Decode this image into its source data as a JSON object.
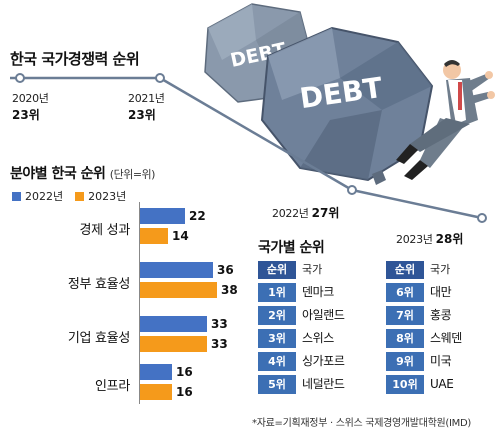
{
  "header": {
    "title": "한국 국가경쟁력 순위",
    "points": [
      {
        "year": "2020년",
        "rank": "23위"
      },
      {
        "year": "2021년",
        "rank": "23위"
      },
      {
        "year": "2022년",
        "rank": "27위"
      },
      {
        "year": "2023년",
        "rank": "28위"
      }
    ]
  },
  "illustration": {
    "rock_large_text": "DEBT",
    "rock_small_text": "DEBT"
  },
  "sector": {
    "title": "분야별 한국 순위",
    "unit": "(단위=위)",
    "legend": [
      "2022년",
      "2023년"
    ]
  },
  "countries": {
    "title": "국가별 순위",
    "col_rank": "순위",
    "col_country": "국가",
    "left": [
      {
        "rank": "1위",
        "country": "덴마크"
      },
      {
        "rank": "2위",
        "country": "아일랜드"
      },
      {
        "rank": "3위",
        "country": "스위스"
      },
      {
        "rank": "4위",
        "country": "싱가포르"
      },
      {
        "rank": "5위",
        "country": "네덜란드"
      }
    ],
    "right": [
      {
        "rank": "6위",
        "country": "대만"
      },
      {
        "rank": "7위",
        "country": "홍콩"
      },
      {
        "rank": "8위",
        "country": "스웨덴"
      },
      {
        "rank": "9위",
        "country": "미국"
      },
      {
        "rank": "10위",
        "country": "UAE"
      }
    ]
  },
  "source": "*자료=기획재정부 · 스위스 국제경영개발대학원(IMD)",
  "colors": {
    "y2022": "#4472c4",
    "y2023": "#f59a1b",
    "line": "#6b7d95",
    "header_blue": "#2f5597"
  },
  "chart_data": [
    {
      "type": "line",
      "title": "한국 국가경쟁력 순위",
      "x": [
        "2020년",
        "2021년",
        "2022년",
        "2023년"
      ],
      "series": [
        {
          "values": [
            23,
            23,
            27,
            28
          ]
        }
      ]
    },
    {
      "type": "bar",
      "orientation": "horizontal",
      "title": "분야별 한국 순위",
      "unit": "(단위=위)",
      "categories": [
        "경제 성과",
        "정부 효율성",
        "기업 효율성",
        "인프라"
      ],
      "series": [
        {
          "name": "2022년",
          "values": [
            22,
            36,
            33,
            16
          ]
        },
        {
          "name": "2023년",
          "values": [
            14,
            38,
            33,
            16
          ]
        }
      ],
      "xlim": [
        0,
        38
      ],
      "legend": "top-left"
    }
  ]
}
